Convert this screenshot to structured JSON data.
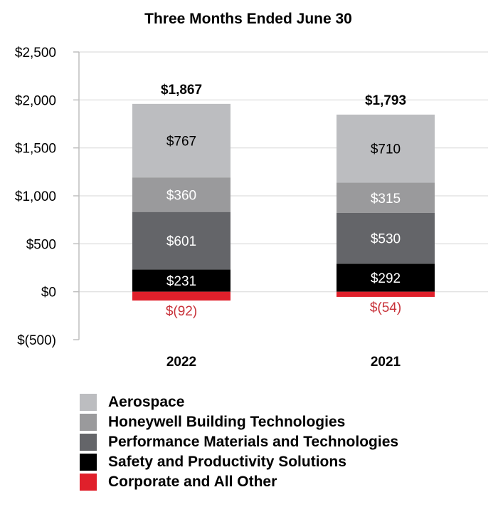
{
  "chart_data": {
    "type": "bar",
    "stacked": true,
    "title": "Three Months Ended June 30",
    "xlabel": "",
    "ylabel": "",
    "ylim": [
      -500,
      2500
    ],
    "y_ticks": [
      -500,
      0,
      500,
      1000,
      1500,
      2000,
      2500
    ],
    "y_tick_labels": [
      "$(500)",
      "$0",
      "$500",
      "$1,000",
      "$1,500",
      "$2,000",
      "$2,500"
    ],
    "grid": true,
    "categories": [
      "2022",
      "2021"
    ],
    "totals": [
      1867,
      1793
    ],
    "total_labels": [
      "$1,867",
      "$1,793"
    ],
    "series": [
      {
        "name": "Safety and Productivity Solutions",
        "color": "#000000",
        "label_color": "#ffffff",
        "values": [
          231,
          292
        ],
        "labels": [
          "$231",
          "$292"
        ]
      },
      {
        "name": "Performance Materials and Technologies",
        "color": "#646569",
        "label_color": "#ffffff",
        "values": [
          601,
          530
        ],
        "labels": [
          "$601",
          "$530"
        ]
      },
      {
        "name": "Honeywell Building Technologies",
        "color": "#9a9a9c",
        "label_color": "#ffffff",
        "values": [
          360,
          315
        ],
        "labels": [
          "$360",
          "$315"
        ]
      },
      {
        "name": "Aerospace",
        "color": "#bcbdc0",
        "label_color": "#000000",
        "values": [
          767,
          710
        ],
        "labels": [
          "$767",
          "$710"
        ]
      },
      {
        "name": "Corporate and All Other",
        "color": "#e0202b",
        "label_color": "#c8323a",
        "values": [
          -92,
          -54
        ],
        "labels": [
          "$(92)",
          "$(54)"
        ],
        "label_position": "below"
      }
    ],
    "legend": {
      "placement": "bottom",
      "order": [
        "Aerospace",
        "Honeywell Building Technologies",
        "Performance Materials and Technologies",
        "Safety and Productivity Solutions",
        "Corporate and All Other"
      ]
    }
  }
}
